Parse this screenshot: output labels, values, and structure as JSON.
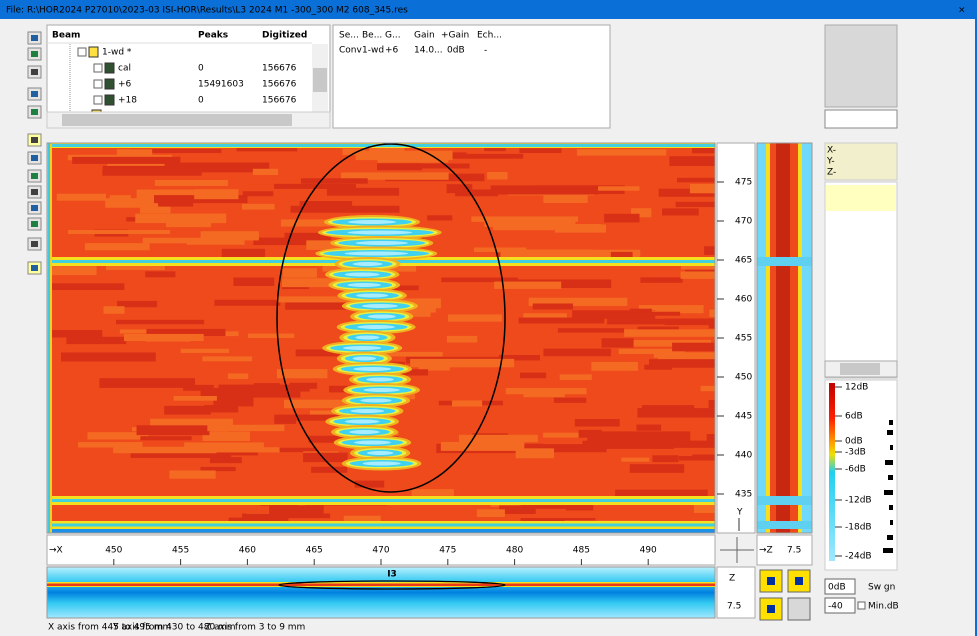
{
  "window": {
    "title": "File: R:\\HOR2024 P27010\\2023-03 ISI-HOR\\Results\\L3 2024 M1 -300_300 M2 608_345.res",
    "close": "×"
  },
  "tree": {
    "headers": [
      "Beam",
      "Peaks",
      "Digitized"
    ],
    "rows": [
      {
        "beam": "1-wd  *"
      },
      {
        "beam": "cal",
        "peaks": 0,
        "digitized": 156676
      },
      {
        "beam": "+6",
        "peaks": 15491603,
        "digitized": 156676
      },
      {
        "beam": "+18",
        "peaks": 0,
        "digitized": 156676
      }
    ]
  },
  "gain_table": {
    "headers": [
      "Se...",
      "Be...",
      "G...",
      "Gain",
      "+Gain",
      "Ech..."
    ],
    "rows": [
      [
        "Conv",
        "1-wd",
        "+6",
        "14.0...",
        "0dB",
        "-"
      ]
    ]
  },
  "cscan": {
    "x_axis_label": "→X",
    "xlim": [
      445,
      495
    ],
    "xticks": [
      450,
      455,
      460,
      465,
      470,
      475,
      480,
      485,
      490
    ],
    "y_axis_label": "Y",
    "ylim": [
      430,
      480
    ],
    "yticks": [
      475,
      470,
      465,
      460,
      455,
      450,
      445,
      440,
      435
    ]
  },
  "side_scan": {
    "z_axis_label": "→Z",
    "z_tick": 7.5
  },
  "bscan": {
    "indication": "I3",
    "z_axis_label": "Z",
    "z_tick": 7.5
  },
  "cursor": [
    "X-",
    "Y-",
    "Z-"
  ],
  "color_scale": {
    "labels": [
      "12dB",
      "6dB",
      "0dB",
      "-3dB",
      "-6dB",
      "-12dB",
      "-18dB",
      "-24dB"
    ]
  },
  "controls": {
    "gain": "0dB",
    "switch": "Sw gn",
    "min_value": "-40",
    "min_label": "Min.dB"
  },
  "status": [
    "X axis from 445 to 495 mm",
    "Y axis from 430 to 480 mm",
    "Z axis from 3 to 9 mm"
  ]
}
